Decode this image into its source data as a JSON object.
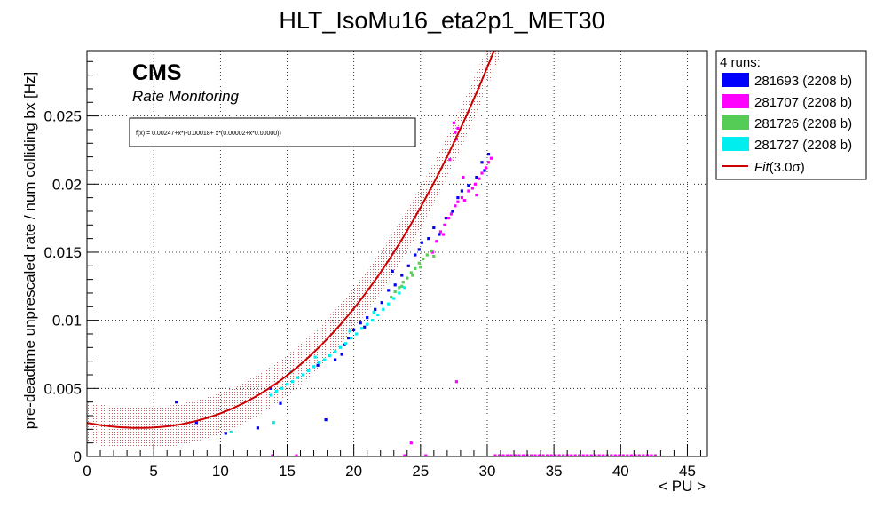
{
  "chart_data": {
    "type": "scatter",
    "title": "HLT_IsoMu16_eta2p1_MET30",
    "xlabel": "< PU >",
    "ylabel": "pre-deadtime unprescaled rate / num colliding bx [Hz]",
    "xlim": [
      0,
      46.5
    ],
    "ylim": [
      0,
      0.0298
    ],
    "xticks": [
      0,
      5,
      10,
      15,
      20,
      25,
      30,
      35,
      40,
      45
    ],
    "xtick_labels": [
      "0",
      "5",
      "10",
      "15",
      "20",
      "25",
      "30",
      "35",
      "40",
      "45"
    ],
    "yticks": [
      0,
      0.005,
      0.01,
      0.015,
      0.02,
      0.025
    ],
    "ytick_labels": [
      "0",
      "0.005",
      "0.01",
      "0.015",
      "0.02",
      "0.025"
    ],
    "grid": true,
    "cms_label": "CMS",
    "cms_sublabel": "Rate Monitoring",
    "fit_formula": "f(x) = 0.00247+x*(-0.00018+ x*(0.00002+x*0.00000))",
    "fit_coefficients": [
      0.00247,
      -0.00018,
      2e-05,
      5e-07
    ],
    "fit_band_halfwidth": 0.0015,
    "legend": {
      "header": "4 runs:",
      "placement": "right",
      "fit_label": "Fit",
      "fit_label_suffix": "(3.0σ)",
      "fit_color": "#cc0000"
    },
    "series": [
      {
        "name": "281693 (2208 b)",
        "color": "#0000ff",
        "points": [
          [
            6.7,
            0.004
          ],
          [
            8.2,
            0.0025
          ],
          [
            10.4,
            0.0017
          ],
          [
            12.8,
            0.0021
          ],
          [
            13.8,
            0.005
          ],
          [
            14.5,
            0.0039
          ],
          [
            17.9,
            0.0027
          ],
          [
            18.6,
            0.0071
          ],
          [
            19.1,
            0.0075
          ],
          [
            19.6,
            0.0087
          ],
          [
            20.0,
            0.0093
          ],
          [
            20.5,
            0.0098
          ],
          [
            21.0,
            0.0102
          ],
          [
            21.6,
            0.0108
          ],
          [
            22.1,
            0.0113
          ],
          [
            22.6,
            0.0122
          ],
          [
            23.1,
            0.0126
          ],
          [
            23.6,
            0.0133
          ],
          [
            24.1,
            0.014
          ],
          [
            24.6,
            0.0148
          ],
          [
            25.1,
            0.0157
          ],
          [
            25.6,
            0.016
          ],
          [
            26.0,
            0.0168
          ],
          [
            26.4,
            0.0163
          ],
          [
            26.9,
            0.0175
          ],
          [
            27.4,
            0.018
          ],
          [
            27.8,
            0.019
          ],
          [
            28.1,
            0.0195
          ],
          [
            28.6,
            0.0199
          ],
          [
            29.2,
            0.0205
          ],
          [
            29.8,
            0.021
          ],
          [
            30.1,
            0.0222
          ],
          [
            29.6,
            0.0216
          ],
          [
            22.9,
            0.0136
          ],
          [
            24.9,
            0.0152
          ],
          [
            20.8,
            0.0095
          ],
          [
            19.3,
            0.0082
          ],
          [
            17.3,
            0.0067
          ]
        ]
      },
      {
        "name": "281707 (2208 b)",
        "color": "#ff00ff",
        "points": [
          [
            25.9,
            0.015
          ],
          [
            26.2,
            0.0158
          ],
          [
            26.5,
            0.0165
          ],
          [
            26.8,
            0.017
          ],
          [
            27.1,
            0.0175
          ],
          [
            27.3,
            0.0178
          ],
          [
            27.6,
            0.0184
          ],
          [
            27.8,
            0.0187
          ],
          [
            28.1,
            0.019
          ],
          [
            28.3,
            0.0188
          ],
          [
            28.6,
            0.0195
          ],
          [
            28.9,
            0.0197
          ],
          [
            29.1,
            0.02
          ],
          [
            29.4,
            0.0204
          ],
          [
            29.6,
            0.0208
          ],
          [
            29.9,
            0.0212
          ],
          [
            30.1,
            0.0216
          ],
          [
            30.3,
            0.0219
          ],
          [
            27.5,
            0.0245
          ],
          [
            27.6,
            0.0238
          ],
          [
            27.7,
            0.0233
          ],
          [
            27.8,
            0.0241
          ],
          [
            27.2,
            0.0218
          ],
          [
            24.3,
            0.001
          ],
          [
            27.7,
            0.0055
          ],
          [
            28.2,
            0.0205
          ],
          [
            26.7,
            0.0163
          ],
          [
            29.2,
            0.0192
          ]
        ]
      },
      {
        "name": "281726 (2208 b)",
        "color": "#55cc55",
        "points": [
          [
            22.8,
            0.0117
          ],
          [
            23.1,
            0.0121
          ],
          [
            23.4,
            0.0124
          ],
          [
            23.7,
            0.0128
          ],
          [
            24.0,
            0.0131
          ],
          [
            24.3,
            0.0135
          ],
          [
            24.6,
            0.0138
          ],
          [
            24.9,
            0.0142
          ],
          [
            25.2,
            0.0145
          ],
          [
            25.5,
            0.0148
          ],
          [
            25.8,
            0.0151
          ],
          [
            26.0,
            0.0147
          ],
          [
            24.4,
            0.0133
          ],
          [
            23.6,
            0.0125
          ],
          [
            25.0,
            0.0139
          ]
        ]
      },
      {
        "name": "281727 (2208 b)",
        "color": "#00eeee",
        "points": [
          [
            13.8,
            0.0045
          ],
          [
            14.2,
            0.0048
          ],
          [
            14.6,
            0.005
          ],
          [
            15.0,
            0.0053
          ],
          [
            15.4,
            0.0055
          ],
          [
            15.8,
            0.0058
          ],
          [
            16.2,
            0.006
          ],
          [
            16.6,
            0.0063
          ],
          [
            17.0,
            0.0066
          ],
          [
            17.4,
            0.0069
          ],
          [
            17.8,
            0.0071
          ],
          [
            18.2,
            0.0074
          ],
          [
            18.6,
            0.0077
          ],
          [
            19.0,
            0.008
          ],
          [
            19.4,
            0.0083
          ],
          [
            19.8,
            0.0087
          ],
          [
            20.2,
            0.009
          ],
          [
            20.6,
            0.0094
          ],
          [
            21.0,
            0.0097
          ],
          [
            21.4,
            0.01
          ],
          [
            21.8,
            0.0104
          ],
          [
            22.2,
            0.0108
          ],
          [
            22.6,
            0.0112
          ],
          [
            23.0,
            0.0116
          ],
          [
            23.4,
            0.012
          ],
          [
            23.8,
            0.0124
          ],
          [
            14.0,
            0.0025
          ],
          [
            10.8,
            0.0018
          ],
          [
            15.3,
            0.0062
          ],
          [
            17.1,
            0.0073
          ],
          [
            19.7,
            0.0092
          ],
          [
            21.5,
            0.0106
          ]
        ]
      }
    ],
    "zero_rate_points": {
      "color": "#ff00ff",
      "x_range": [
        30.6,
        42.8
      ],
      "y": 0,
      "extra_x": [
        13.9,
        15.7,
        23.8,
        25.4
      ]
    }
  }
}
